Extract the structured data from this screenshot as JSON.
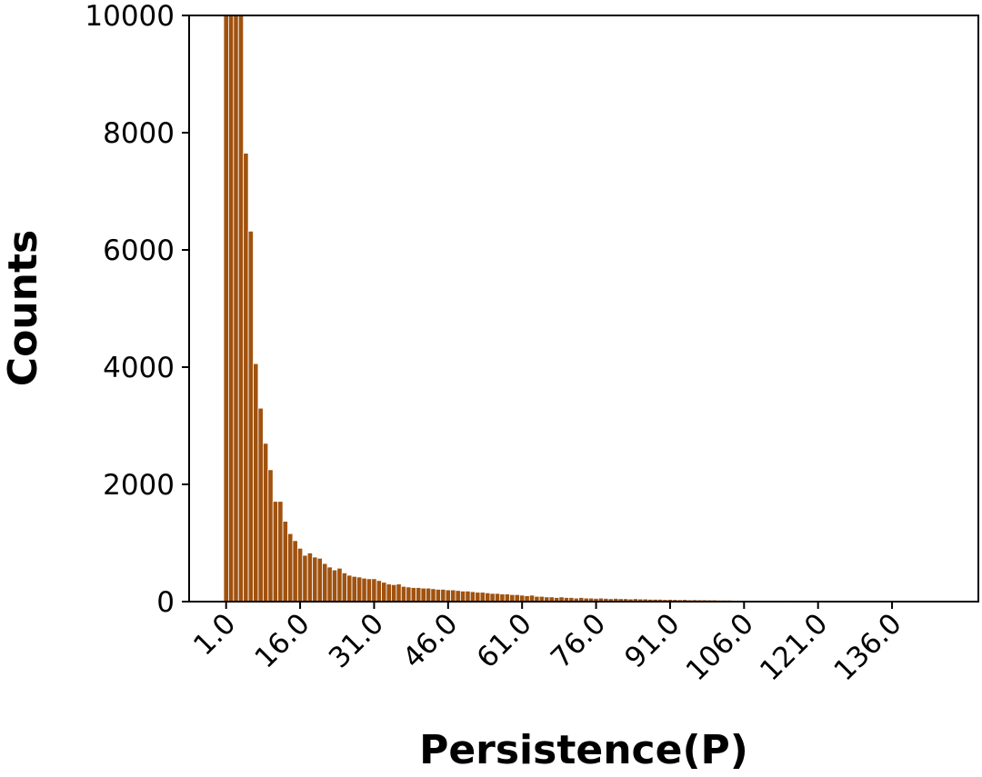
{
  "chart_data": {
    "type": "bar",
    "xlabel": "Persistence(P)",
    "ylabel": "Counts",
    "ylim": [
      0,
      10000
    ],
    "xlim": [
      -6.5,
      153.5
    ],
    "x_ticks": [
      1,
      16,
      31,
      46,
      61,
      76,
      91,
      106,
      121,
      136
    ],
    "x_tick_labels": [
      "1.0",
      "16.0",
      "31.0",
      "46.0",
      "61.0",
      "76.0",
      "91.0",
      "106.0",
      "121.0",
      "136.0"
    ],
    "y_ticks": [
      0,
      2000,
      4000,
      6000,
      8000,
      10000
    ],
    "y_tick_labels": [
      "0",
      "2000",
      "4000",
      "6000",
      "8000",
      "10000"
    ],
    "bar_color": "#a0520f",
    "bar_edge_color": "#ffffff",
    "grid": false,
    "legend": "none",
    "x": [
      1,
      2,
      3,
      4,
      5,
      6,
      7,
      8,
      9,
      10,
      11,
      12,
      13,
      14,
      15,
      16,
      17,
      18,
      19,
      20,
      21,
      22,
      23,
      24,
      25,
      26,
      27,
      28,
      29,
      30,
      31,
      32,
      33,
      34,
      35,
      36,
      37,
      38,
      39,
      40,
      41,
      42,
      43,
      44,
      45,
      46,
      47,
      48,
      49,
      50,
      51,
      52,
      53,
      54,
      55,
      56,
      57,
      58,
      59,
      60,
      61,
      62,
      63,
      64,
      65,
      66,
      67,
      68,
      69,
      70,
      71,
      72,
      73,
      74,
      75,
      76,
      77,
      78,
      79,
      80,
      81,
      82,
      83,
      84,
      85,
      86,
      87,
      88,
      89,
      90,
      91,
      92,
      93,
      94,
      95,
      96,
      97,
      98,
      99,
      100,
      101,
      102,
      103,
      104,
      105,
      106,
      107,
      108,
      109,
      110,
      111,
      112,
      113,
      114,
      115,
      116,
      117,
      118,
      119,
      120,
      121,
      122,
      123,
      124,
      125,
      126,
      127,
      128,
      129,
      130,
      131,
      132,
      133,
      134,
      135,
      136,
      137,
      138,
      139,
      140,
      141,
      142,
      143,
      144,
      145,
      146
    ],
    "values": [
      10000,
      10000,
      10000,
      10000,
      7650,
      6320,
      4060,
      3300,
      2700,
      2250,
      1710,
      1710,
      1370,
      1160,
      1040,
      910,
      790,
      830,
      760,
      740,
      650,
      590,
      540,
      570,
      490,
      450,
      430,
      420,
      400,
      390,
      390,
      360,
      330,
      300,
      290,
      300,
      260,
      250,
      240,
      240,
      230,
      230,
      220,
      210,
      210,
      200,
      200,
      190,
      180,
      180,
      170,
      160,
      160,
      150,
      140,
      140,
      130,
      130,
      120,
      120,
      110,
      100,
      110,
      90,
      90,
      80,
      80,
      70,
      80,
      70,
      70,
      60,
      70,
      60,
      60,
      55,
      60,
      55,
      50,
      55,
      50,
      50,
      45,
      50,
      45,
      45,
      40,
      40,
      40,
      35,
      38,
      35,
      32,
      35,
      30,
      32,
      30,
      30,
      28,
      28,
      25,
      25,
      25,
      22,
      22,
      20,
      20,
      22,
      20,
      18,
      18,
      18,
      18,
      16,
      16,
      15,
      15,
      15,
      14,
      14,
      14,
      13,
      13,
      12,
      12,
      12,
      11,
      11,
      10,
      10,
      10,
      10,
      9,
      9,
      8,
      8,
      8,
      7,
      7,
      7,
      6,
      6,
      6,
      5,
      5,
      5
    ]
  }
}
